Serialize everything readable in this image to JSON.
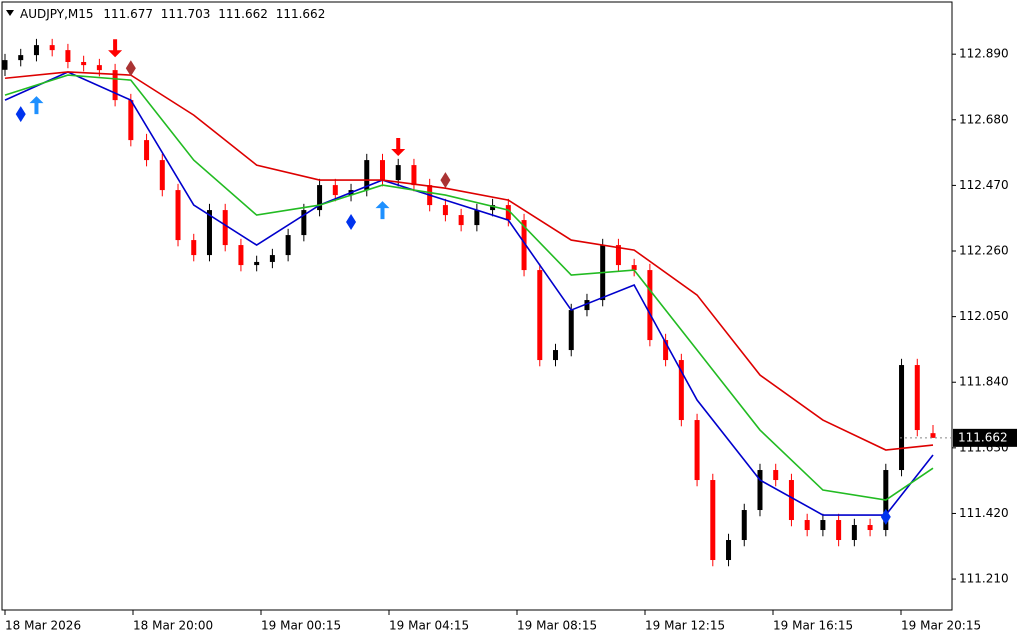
{
  "chart_data": {
    "type": "candlestick",
    "title": "AUDJPY,M15",
    "open": [
      112.84,
      112.871,
      112.887,
      112.919,
      112.903,
      112.865,
      112.855,
      112.839,
      112.743,
      112.615,
      112.551,
      112.455,
      112.295,
      112.247,
      112.391,
      112.279,
      112.215,
      112.225,
      112.247,
      112.311,
      112.391,
      112.471,
      112.439,
      112.455,
      112.551,
      112.487,
      112.535,
      112.471,
      112.407,
      112.375,
      112.343,
      112.391,
      112.407,
      112.359,
      112.199,
      111.911,
      111.943,
      112.071,
      112.103,
      112.279,
      112.215,
      112.199,
      111.975,
      111.911,
      111.719,
      111.527,
      111.271,
      111.335,
      111.431,
      111.559,
      111.527,
      111.399,
      111.367,
      111.399,
      111.335,
      111.383,
      111.367,
      111.559,
      111.895,
      111.677
    ],
    "high": [
      112.891,
      112.907,
      112.939,
      112.939,
      112.923,
      112.885,
      112.875,
      112.859,
      112.763,
      112.635,
      112.571,
      112.475,
      112.315,
      112.411,
      112.411,
      112.299,
      112.245,
      112.267,
      112.331,
      112.411,
      112.491,
      112.491,
      112.475,
      112.571,
      112.571,
      112.555,
      112.555,
      112.491,
      112.427,
      112.395,
      112.411,
      112.427,
      112.427,
      112.379,
      112.219,
      111.963,
      112.091,
      112.123,
      112.299,
      112.299,
      112.235,
      112.219,
      111.995,
      111.931,
      111.739,
      111.547,
      111.355,
      111.451,
      111.579,
      111.579,
      111.547,
      111.419,
      111.419,
      111.419,
      111.403,
      111.403,
      111.579,
      111.915,
      111.915,
      111.703
    ],
    "low": [
      112.82,
      112.851,
      112.867,
      112.883,
      112.845,
      112.835,
      112.819,
      112.723,
      112.595,
      112.531,
      112.435,
      112.275,
      112.227,
      112.227,
      112.259,
      112.195,
      112.195,
      112.205,
      112.227,
      112.291,
      112.371,
      112.419,
      112.419,
      112.435,
      112.467,
      112.467,
      112.451,
      112.387,
      112.355,
      112.323,
      112.323,
      112.371,
      112.339,
      112.179,
      111.891,
      111.891,
      111.923,
      112.051,
      112.083,
      112.195,
      112.179,
      111.955,
      111.891,
      111.699,
      111.507,
      111.251,
      111.251,
      111.315,
      111.411,
      111.507,
      111.379,
      111.347,
      111.347,
      111.315,
      111.315,
      111.347,
      111.347,
      111.539,
      111.667,
      111.662
    ],
    "close": [
      112.871,
      112.887,
      112.919,
      112.903,
      112.865,
      112.855,
      112.839,
      112.743,
      112.615,
      112.551,
      112.455,
      112.295,
      112.247,
      112.391,
      112.279,
      112.215,
      112.225,
      112.247,
      112.311,
      112.391,
      112.471,
      112.439,
      112.455,
      112.551,
      112.487,
      112.535,
      112.471,
      112.407,
      112.375,
      112.343,
      112.391,
      112.407,
      112.359,
      112.199,
      111.911,
      111.943,
      112.071,
      112.103,
      112.279,
      112.215,
      112.199,
      111.975,
      111.911,
      111.719,
      111.527,
      111.271,
      111.335,
      111.431,
      111.559,
      111.527,
      111.399,
      111.367,
      111.399,
      111.335,
      111.383,
      111.367,
      111.559,
      111.895,
      111.687,
      111.662
    ],
    "up_color": "#000000",
    "down_color": "#ff0000",
    "lines": {
      "x": [
        0,
        4,
        8,
        12,
        16,
        20,
        24,
        28,
        32,
        36,
        40,
        44,
        48,
        52,
        56,
        59
      ],
      "series": [
        {
          "color": "#0000cc",
          "values": [
            112.743,
            112.833,
            112.743,
            112.407,
            112.279,
            112.407,
            112.487,
            112.423,
            112.359,
            112.071,
            112.151,
            111.783,
            111.527,
            111.415,
            111.415,
            111.607
          ]
        },
        {
          "color": "#22bb22",
          "values": [
            112.759,
            112.823,
            112.807,
            112.551,
            112.375,
            112.407,
            112.471,
            112.439,
            112.391,
            112.183,
            112.199,
            111.943,
            111.687,
            111.495,
            111.463,
            111.565
          ]
        },
        {
          "color": "#dd0000",
          "values": [
            112.813,
            112.833,
            112.823,
            112.695,
            112.535,
            112.487,
            112.487,
            112.461,
            112.423,
            112.295,
            112.263,
            112.119,
            111.863,
            111.719,
            111.623,
            111.639
          ]
        }
      ]
    },
    "signals": [
      {
        "kind": "up-arrow",
        "color": "#1e90ff",
        "x": [
          2,
          24
        ],
        "values": [
          112.727,
          112.391
        ]
      },
      {
        "kind": "down-arrow",
        "color": "#ff0000",
        "x": [
          7,
          25
        ],
        "values": [
          112.909,
          112.593
        ]
      },
      {
        "kind": "diamond",
        "color": "#0033ee",
        "x": [
          1,
          22,
          56
        ],
        "values": [
          112.698,
          112.353,
          111.409
        ]
      },
      {
        "kind": "diamond",
        "color": "#aa3333",
        "x": [
          8,
          28
        ],
        "values": [
          112.845,
          112.487
        ]
      }
    ],
    "ylim": [
      111.111,
      113.057
    ],
    "yticks": [
      {
        "value": 112.89,
        "label": "112.890"
      },
      {
        "value": 112.68,
        "label": "112.680"
      },
      {
        "value": 112.47,
        "label": "112.470"
      },
      {
        "value": 112.26,
        "label": "112.260"
      },
      {
        "value": 112.05,
        "label": "112.050"
      },
      {
        "value": 111.84,
        "label": "111.840"
      },
      {
        "value": 111.63,
        "label": "111.630"
      },
      {
        "value": 111.42,
        "label": "111.420"
      },
      {
        "value": 111.21,
        "label": "111.210"
      }
    ],
    "xticks": [
      "18 Mar 2026",
      "18 Mar 20:00",
      "19 Mar 00:15",
      "19 Mar 04:15",
      "19 Mar 08:15",
      "19 Mar 12:15",
      "19 Mar 16:15",
      "19 Mar 20:15"
    ]
  }
}
